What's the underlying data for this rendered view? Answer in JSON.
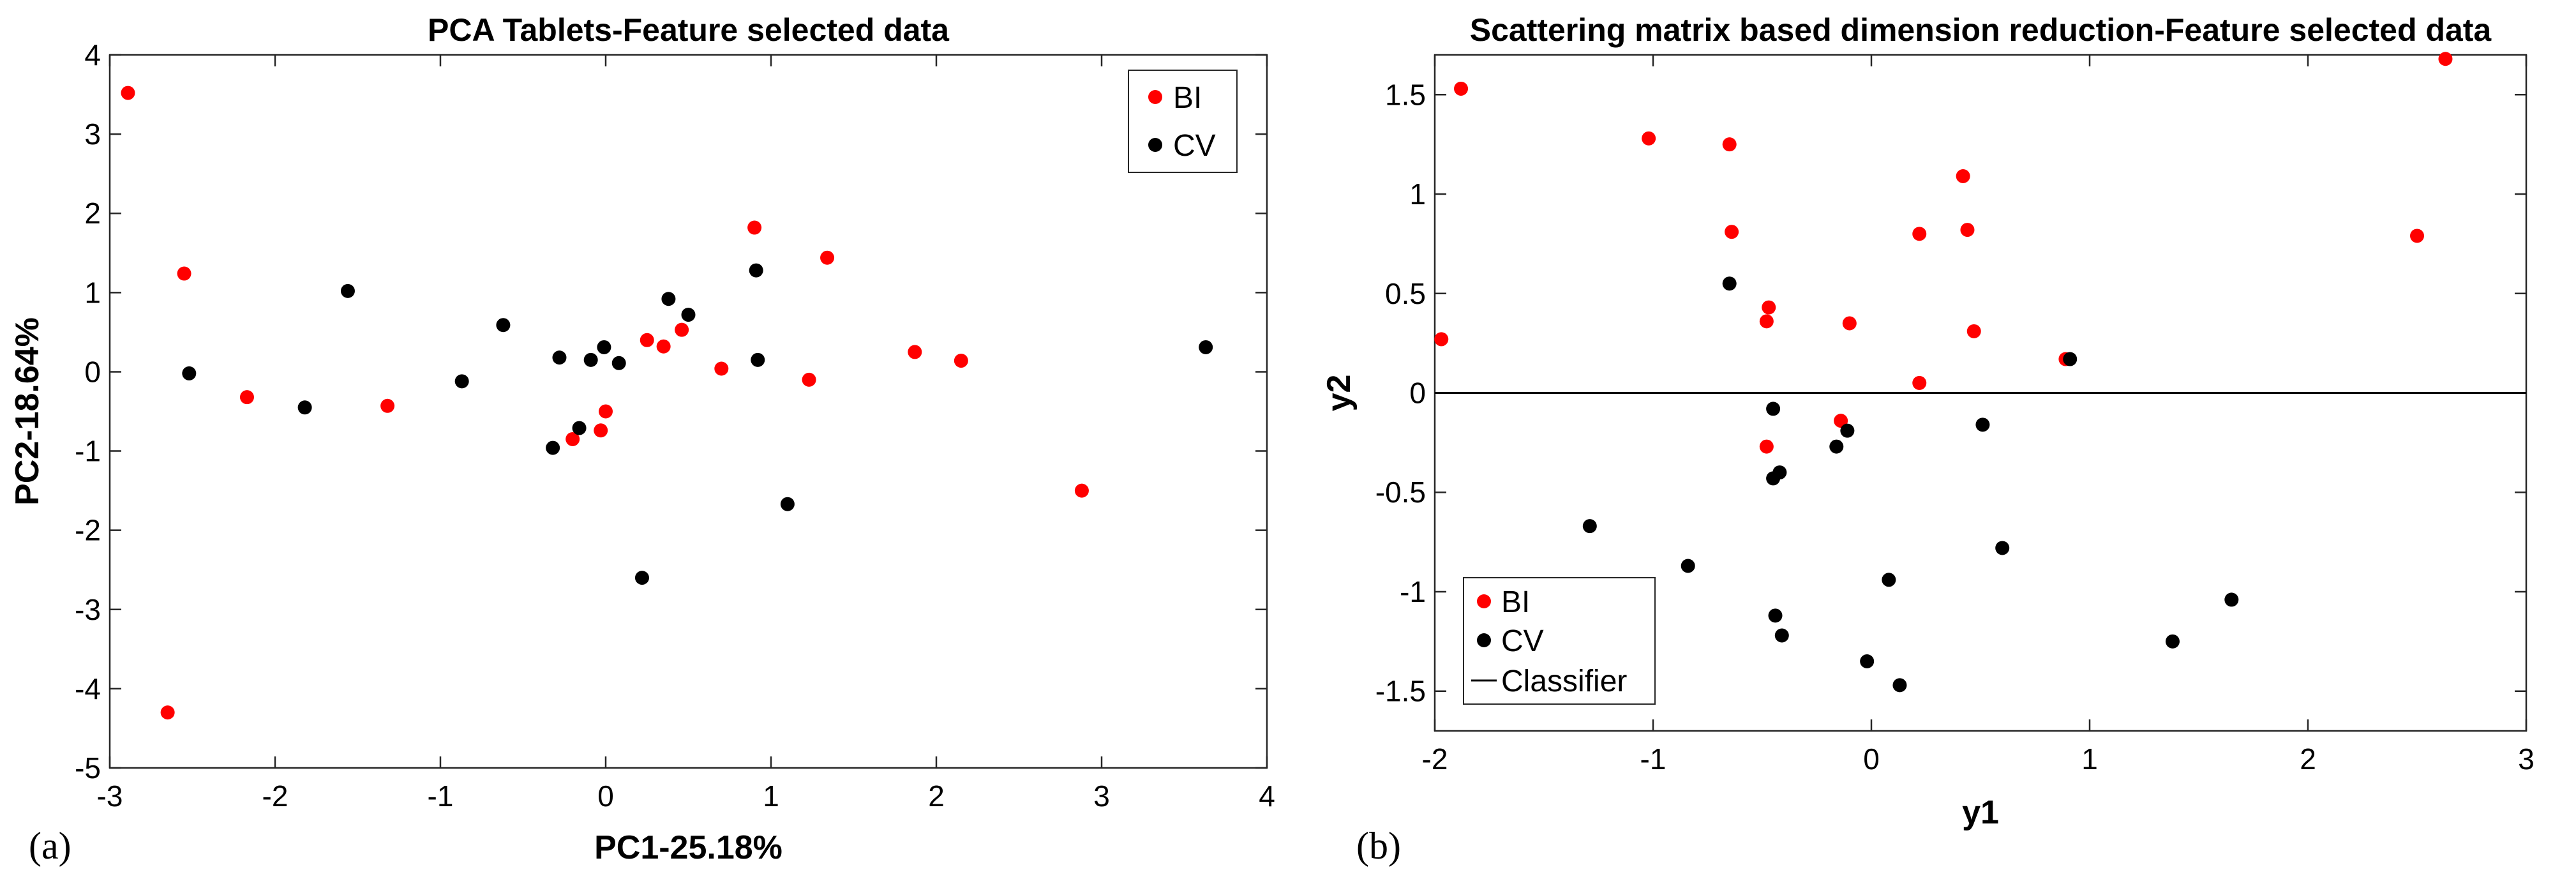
{
  "colors": {
    "BI": "#ff0000",
    "CV": "#000000",
    "classifier": "#000000"
  },
  "chart_data": [
    {
      "type": "scatter",
      "panel_label": "(a)",
      "title": "PCA Tablets-Feature selected data",
      "xlabel": "PC1-25.18%",
      "ylabel": "PC2-18.64%",
      "xlim": [
        -3,
        4
      ],
      "ylim": [
        -5,
        4
      ],
      "xticks": [
        "-3",
        "-2",
        "-1",
        "0",
        "1",
        "2",
        "3",
        "4"
      ],
      "yticks": [
        "4",
        "3",
        "2",
        "1",
        "0",
        "-1",
        "-2",
        "-3",
        "-4",
        "-5"
      ],
      "legend_position": "top-right",
      "series": [
        {
          "name": "BI",
          "points": [
            [
              -2.89,
              3.52
            ],
            [
              -2.55,
              1.24
            ],
            [
              -2.17,
              -0.32
            ],
            [
              -1.32,
              -0.43
            ],
            [
              -2.65,
              -4.3
            ],
            [
              -0.2,
              -0.85
            ],
            [
              -0.03,
              -0.74
            ],
            [
              0.0,
              -0.5
            ],
            [
              0.25,
              0.4
            ],
            [
              0.35,
              0.32
            ],
            [
              0.46,
              0.53
            ],
            [
              0.7,
              0.04
            ],
            [
              0.9,
              1.82
            ],
            [
              1.23,
              -0.1
            ],
            [
              1.34,
              1.44
            ],
            [
              1.87,
              0.25
            ],
            [
              2.15,
              0.14
            ],
            [
              2.88,
              -1.5
            ]
          ]
        },
        {
          "name": "CV",
          "points": [
            [
              -2.52,
              -0.02
            ],
            [
              -1.82,
              -0.45
            ],
            [
              -1.56,
              1.02
            ],
            [
              -0.87,
              -0.12
            ],
            [
              -0.62,
              0.59
            ],
            [
              -0.32,
              -0.96
            ],
            [
              -0.28,
              0.18
            ],
            [
              -0.16,
              -0.71
            ],
            [
              -0.09,
              0.15
            ],
            [
              -0.01,
              0.31
            ],
            [
              0.08,
              0.11
            ],
            [
              0.22,
              -2.6
            ],
            [
              0.38,
              0.92
            ],
            [
              0.5,
              0.72
            ],
            [
              0.91,
              1.28
            ],
            [
              0.92,
              0.15
            ],
            [
              1.1,
              -1.67
            ],
            [
              3.63,
              0.31
            ]
          ]
        }
      ]
    },
    {
      "type": "scatter",
      "panel_label": "(b)",
      "title": "Scattering matrix based dimension reduction-Feature selected data",
      "xlabel": "y1",
      "ylabel": "y2",
      "xlim": [
        -2,
        3
      ],
      "ylim": [
        -1.7,
        1.7
      ],
      "xticks": [
        "-2",
        "-1",
        "0",
        "1",
        "2",
        "3"
      ],
      "yticks": [
        "1.5",
        "1",
        "0.5",
        "0",
        "-0.5",
        "-1",
        "-1.5"
      ],
      "legend_position": "bottom-left",
      "classifier": {
        "name": "Classifier",
        "y": 0
      },
      "series": [
        {
          "name": "BI",
          "points": [
            [
              -1.97,
              0.27
            ],
            [
              -1.88,
              1.53
            ],
            [
              -1.02,
              1.28
            ],
            [
              -0.65,
              1.25
            ],
            [
              -0.64,
              0.81
            ],
            [
              -0.47,
              0.43
            ],
            [
              -0.48,
              0.36
            ],
            [
              -0.1,
              0.35
            ],
            [
              0.22,
              0.8
            ],
            [
              0.42,
              1.09
            ],
            [
              0.44,
              0.82
            ],
            [
              0.47,
              0.31
            ],
            [
              0.22,
              0.05
            ],
            [
              -0.14,
              -0.14
            ],
            [
              -0.48,
              -0.27
            ],
            [
              0.89,
              0.17
            ],
            [
              2.5,
              0.79
            ],
            [
              2.63,
              1.68
            ]
          ]
        },
        {
          "name": "CV",
          "points": [
            [
              -0.65,
              0.55
            ],
            [
              -0.45,
              -0.08
            ],
            [
              -0.11,
              -0.19
            ],
            [
              -0.16,
              -0.27
            ],
            [
              -0.42,
              -0.4
            ],
            [
              -0.45,
              -0.43
            ],
            [
              0.51,
              -0.16
            ],
            [
              0.91,
              0.17
            ],
            [
              -1.29,
              -0.67
            ],
            [
              -0.84,
              -0.87
            ],
            [
              0.6,
              -0.78
            ],
            [
              0.08,
              -0.94
            ],
            [
              -0.44,
              -1.12
            ],
            [
              -0.41,
              -1.22
            ],
            [
              -0.02,
              -1.35
            ],
            [
              0.13,
              -1.47
            ],
            [
              1.38,
              -1.25
            ],
            [
              1.65,
              -1.04
            ]
          ]
        }
      ]
    }
  ]
}
